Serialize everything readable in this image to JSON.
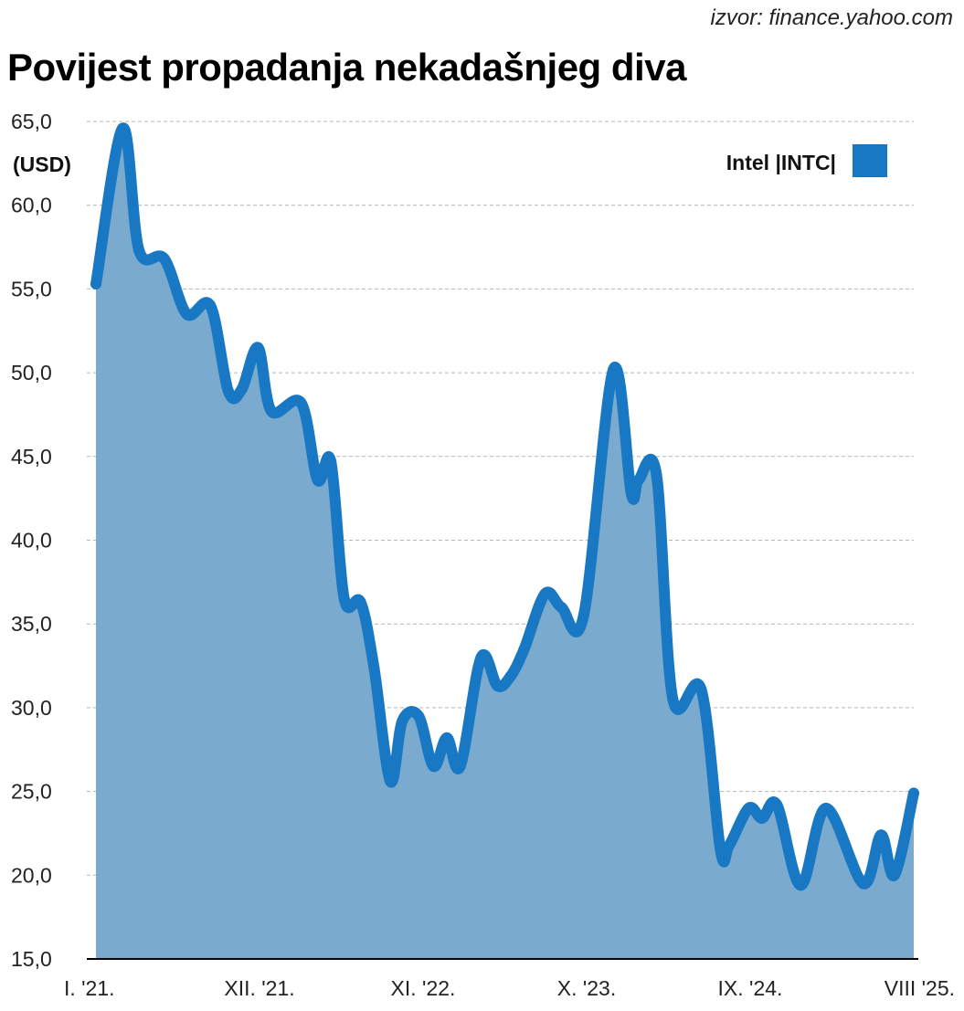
{
  "source": "izvor: finance.yahoo.com",
  "title": "Povijest propadanja nekadašnjeg diva",
  "colors": {
    "line": "#1878c4",
    "fill": "#7aaacd",
    "grid": "#b5b5b5"
  },
  "chart_data": {
    "type": "area",
    "title": "Povijest propadanja nekadašnjeg diva",
    "ylabel": "(USD)",
    "xlabel": "",
    "ylim": [
      15,
      65
    ],
    "xlim_months_since_jan_2021": [
      0,
      55
    ],
    "yticks": [
      "15,0",
      "20,0",
      "25,0",
      "30,0",
      "35,0",
      "40,0",
      "45,0",
      "50,0",
      "55,0",
      "60,0",
      "65,0"
    ],
    "xticks": [
      {
        "label": "I. '21.",
        "month": 0
      },
      {
        "label": "XII. '21.",
        "month": 11
      },
      {
        "label": "XI. '22.",
        "month": 22
      },
      {
        "label": "X. '23.",
        "month": 33
      },
      {
        "label": "IX. '24.",
        "month": 44
      },
      {
        "label": "VIII '25.",
        "month": 55
      }
    ],
    "grid": true,
    "legend": {
      "label": "Intel |INTC|",
      "position": "top-right"
    },
    "series": [
      {
        "name": "Intel |INTC|",
        "x": [
          0,
          1.8,
          2.9,
          4.6,
          6.1,
          7.7,
          8.9,
          9.8,
          10.9,
          11.8,
          13.8,
          14.9,
          15.8,
          16.7,
          17.8,
          18.7,
          19.8,
          20.6,
          21.7,
          22.7,
          23.6,
          24.5,
          25.9,
          27,
          27.9,
          28.8,
          30.2,
          31.3,
          32.8,
          34.8,
          36,
          36.5,
          37.7,
          38.8,
          40.7,
          42,
          42.6,
          43.9,
          44.8,
          45.8,
          47.4,
          49.1,
          51.6,
          52.8,
          53.7,
          55
        ],
        "y": [
          55.3,
          64.6,
          57.3,
          56.8,
          53.5,
          54,
          48.9,
          49,
          51.5,
          47.7,
          48.2,
          43.6,
          44.7,
          36.5,
          36.3,
          32.4,
          25.6,
          29.2,
          29.5,
          26.5,
          28.2,
          26.5,
          33,
          31.3,
          31.9,
          33.5,
          36.8,
          36,
          35.5,
          50.2,
          42.8,
          43.6,
          43.9,
          30.5,
          31.1,
          21.5,
          21.8,
          24,
          23.4,
          24.2,
          19.4,
          24,
          19.5,
          22.4,
          20,
          24.9
        ]
      }
    ]
  }
}
